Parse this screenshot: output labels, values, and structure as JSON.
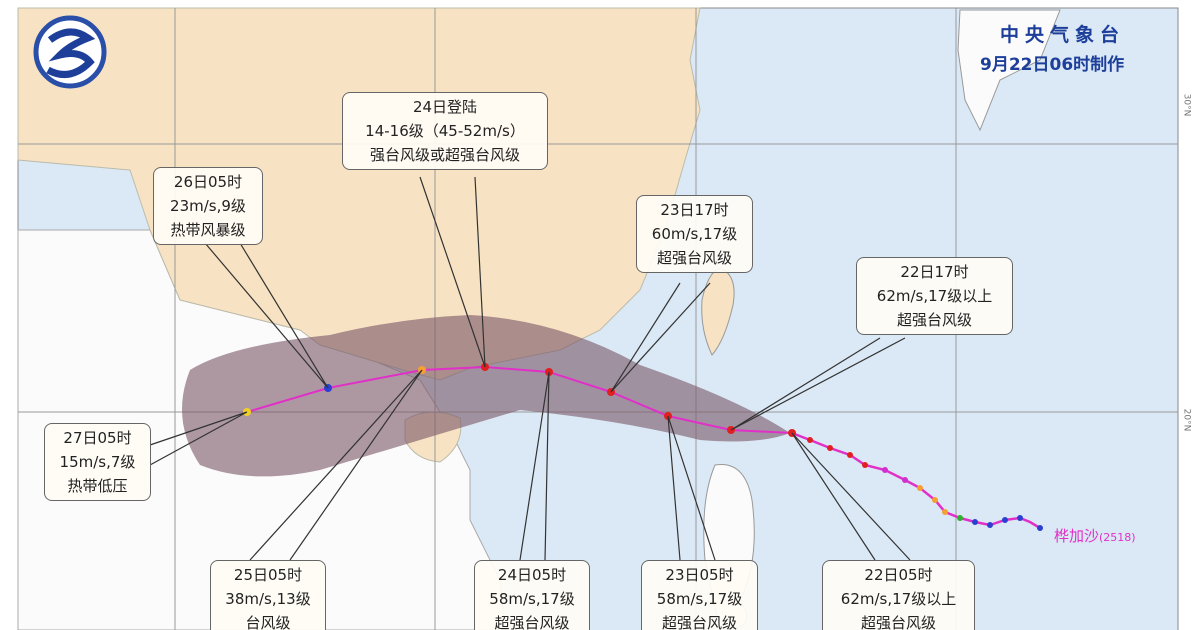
{
  "header": {
    "agency": "中央气象台",
    "issued": "9月22日06时制作"
  },
  "typhoon": {
    "name": "桦加沙",
    "number": "(2518)"
  },
  "grid_labels": {
    "lat_upper": "30°N",
    "lat_lower": "20°N"
  },
  "colors": {
    "track": "#e030c8",
    "cone": "#7d5a6a",
    "land_china": "#f7e3c3",
    "sea": "#dbe9f6",
    "super_typhoon": "#e02020",
    "typhoon": "#f5a030",
    "tropical_storm": "#2b3fd0",
    "tropical_depression": "#f0d020"
  },
  "labels": [
    {
      "id": "landfall",
      "lines": [
        "24日登陆",
        "14-16级（45-52m/s）",
        "强台风级或超强台风级"
      ]
    },
    {
      "id": "d26-05",
      "lines": [
        "26日05时",
        "23m/s,9级",
        "热带风暴级"
      ]
    },
    {
      "id": "d23-17",
      "lines": [
        "23日17时",
        "60m/s,17级",
        "超强台风级"
      ]
    },
    {
      "id": "d22-17",
      "lines": [
        "22日17时",
        "62m/s,17级以上",
        "超强台风级"
      ]
    },
    {
      "id": "d27-05",
      "lines": [
        "27日05时",
        "15m/s,7级",
        "热带低压"
      ]
    },
    {
      "id": "d25-05",
      "lines": [
        "25日05时",
        "38m/s,13级",
        "台风级"
      ]
    },
    {
      "id": "d24-05",
      "lines": [
        "24日05时",
        "58m/s,17级",
        "超强台风级"
      ]
    },
    {
      "id": "d23-05",
      "lines": [
        "23日05时",
        "58m/s,17级",
        "超强台风级"
      ]
    },
    {
      "id": "d22-05",
      "lines": [
        "22日05时",
        "62m/s,17级以上",
        "超强台风级"
      ]
    }
  ]
}
